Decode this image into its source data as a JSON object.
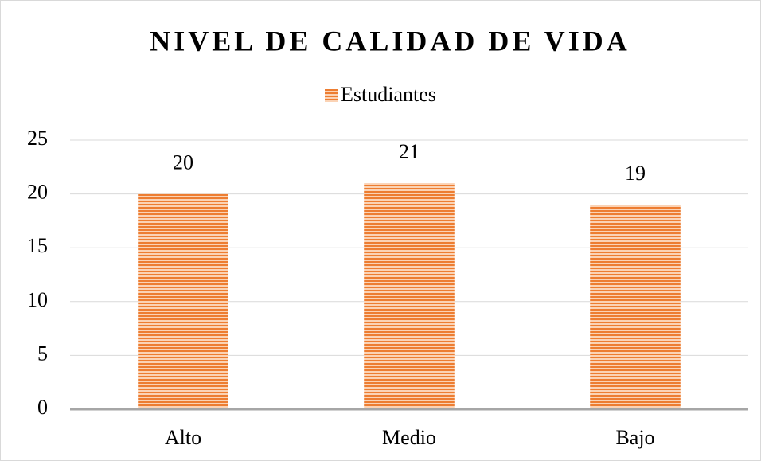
{
  "chart_data": {
    "type": "bar",
    "title": "NIVEL DE CALIDAD DE VIDA",
    "categories": [
      "Alto",
      "Medio",
      "Bajo"
    ],
    "series": [
      {
        "name": "Estudiantes",
        "color": "#ed7d31",
        "values": [
          20,
          21,
          19
        ]
      }
    ],
    "ylim": [
      0,
      25
    ],
    "yticks": [
      0,
      5,
      10,
      15,
      20,
      25
    ],
    "grid": true,
    "legend": "top"
  }
}
